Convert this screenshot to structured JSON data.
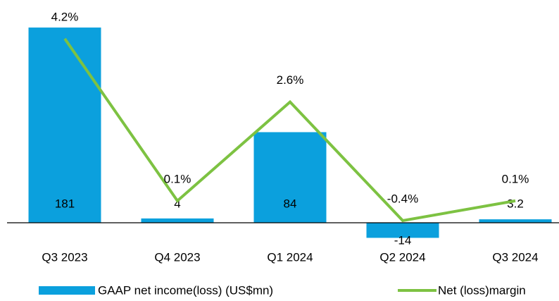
{
  "chart_data": {
    "type": "bar-line",
    "categories": [
      "Q3 2023",
      "Q4 2023",
      "Q1 2024",
      "Q2 2024",
      "Q3 2024"
    ],
    "series": [
      {
        "name": "GAAP net income(loss) (US$mn)",
        "type": "bar",
        "color": "#0ba0dd",
        "values": [
          181,
          4,
          84,
          -14,
          3.2
        ]
      },
      {
        "name": "Net (loss)margin",
        "type": "line",
        "axis": "y2",
        "color": "#7dc242",
        "values": [
          4.2,
          0.1,
          2.6,
          -0.4,
          0.1
        ],
        "value_labels": [
          "4.2%",
          "0.1%",
          "2.6%",
          "-0.4%",
          "0.1%"
        ]
      }
    ],
    "ylim": [
      -20,
      200
    ],
    "y2lim": [
      -1,
      5
    ],
    "legend": "bottom"
  }
}
